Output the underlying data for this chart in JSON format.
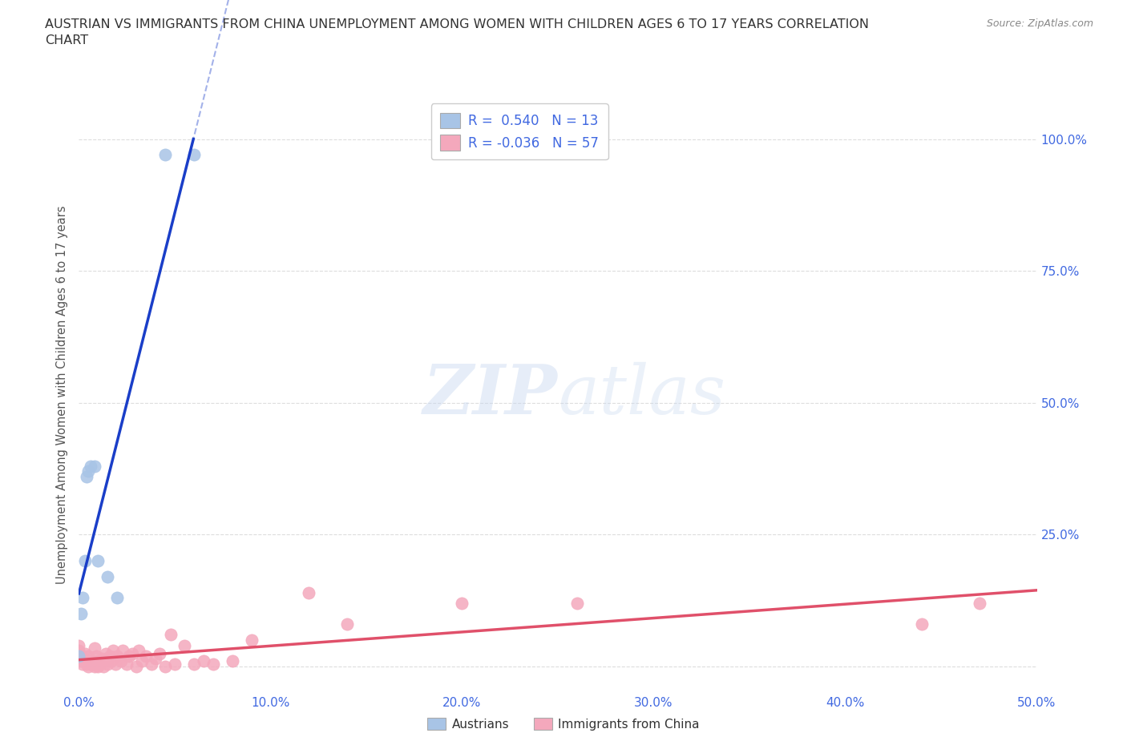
{
  "title": "AUSTRIAN VS IMMIGRANTS FROM CHINA UNEMPLOYMENT AMONG WOMEN WITH CHILDREN AGES 6 TO 17 YEARS CORRELATION\nCHART",
  "source": "Source: ZipAtlas.com",
  "ylabel": "Unemployment Among Women with Children Ages 6 to 17 years",
  "xlim": [
    0.0,
    0.5
  ],
  "ylim": [
    -0.05,
    1.08
  ],
  "x_ticks": [
    0.0,
    0.1,
    0.2,
    0.3,
    0.4,
    0.5
  ],
  "x_tick_labels": [
    "0.0%",
    "10.0%",
    "20.0%",
    "30.0%",
    "40.0%",
    "50.0%"
  ],
  "y_ticks": [
    0.0,
    0.25,
    0.5,
    0.75,
    1.0
  ],
  "y_tick_labels": [
    "",
    "25.0%",
    "50.0%",
    "75.0%",
    "100.0%"
  ],
  "grid_color": "#dddddd",
  "background_color": "#ffffff",
  "austrian_color": "#a8c4e6",
  "immigrant_color": "#f4a8bc",
  "trend_austrian_color": "#1a3ec8",
  "trend_immigrant_color": "#e0506a",
  "legend_label_1": "R =  0.540   N = 13",
  "legend_label_2": "R = -0.036   N = 57",
  "austrian_points_x": [
    0.0,
    0.001,
    0.002,
    0.003,
    0.004,
    0.005,
    0.006,
    0.008,
    0.01,
    0.015,
    0.02,
    0.045,
    0.06
  ],
  "austrian_points_y": [
    0.02,
    0.1,
    0.13,
    0.2,
    0.36,
    0.37,
    0.38,
    0.38,
    0.2,
    0.17,
    0.13,
    0.97,
    0.97
  ],
  "immigrant_points_x": [
    0.0,
    0.0,
    0.0,
    0.0,
    0.001,
    0.001,
    0.002,
    0.003,
    0.003,
    0.004,
    0.005,
    0.005,
    0.005,
    0.006,
    0.007,
    0.008,
    0.008,
    0.009,
    0.01,
    0.01,
    0.011,
    0.012,
    0.013,
    0.014,
    0.015,
    0.016,
    0.017,
    0.018,
    0.019,
    0.02,
    0.022,
    0.023,
    0.025,
    0.026,
    0.028,
    0.03,
    0.031,
    0.033,
    0.035,
    0.038,
    0.04,
    0.042,
    0.045,
    0.048,
    0.05,
    0.055,
    0.06,
    0.065,
    0.07,
    0.08,
    0.09,
    0.12,
    0.14,
    0.2,
    0.26,
    0.44,
    0.47
  ],
  "immigrant_points_y": [
    0.01,
    0.02,
    0.03,
    0.04,
    0.01,
    0.02,
    0.005,
    0.01,
    0.025,
    0.005,
    0.0,
    0.01,
    0.02,
    0.005,
    0.01,
    0.0,
    0.035,
    0.02,
    0.0,
    0.01,
    0.005,
    0.015,
    0.0,
    0.025,
    0.005,
    0.02,
    0.01,
    0.03,
    0.005,
    0.02,
    0.01,
    0.03,
    0.005,
    0.02,
    0.025,
    0.0,
    0.03,
    0.01,
    0.02,
    0.005,
    0.015,
    0.025,
    0.0,
    0.06,
    0.005,
    0.04,
    0.005,
    0.01,
    0.005,
    0.01,
    0.05,
    0.14,
    0.08,
    0.12,
    0.12,
    0.08,
    0.12
  ],
  "tick_color": "#4169e1",
  "title_color": "#333333",
  "ylabel_color": "#555555",
  "source_color": "#888888"
}
